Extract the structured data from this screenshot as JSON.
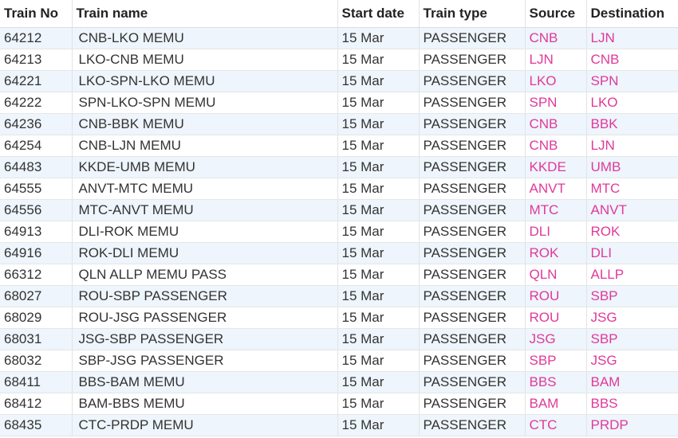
{
  "table": {
    "header": [
      "Train No",
      "Train name",
      "Start date",
      "Train type",
      "Source",
      "Destination"
    ],
    "rows": [
      [
        "64212",
        "CNB-LKO MEMU",
        "15 Mar",
        "PASSENGER",
        "CNB",
        "LJN"
      ],
      [
        "64213",
        "LKO-CNB MEMU",
        "15 Mar",
        "PASSENGER",
        "LJN",
        "CNB"
      ],
      [
        "64221",
        "LKO-SPN-LKO MEMU",
        "15 Mar",
        "PASSENGER",
        "LKO",
        "SPN"
      ],
      [
        "64222",
        "SPN-LKO-SPN MEMU",
        "15 Mar",
        "PASSENGER",
        "SPN",
        "LKO"
      ],
      [
        "64236",
        "CNB-BBK MEMU",
        "15 Mar",
        "PASSENGER",
        "CNB",
        "BBK"
      ],
      [
        "64254",
        "CNB-LJN MEMU",
        "15 Mar",
        "PASSENGER",
        "CNB",
        "LJN"
      ],
      [
        "64483",
        "KKDE-UMB MEMU",
        "15 Mar",
        "PASSENGER",
        "KKDE",
        "UMB"
      ],
      [
        "64555",
        "ANVT-MTC MEMU",
        "15 Mar",
        "PASSENGER",
        "ANVT",
        "MTC"
      ],
      [
        "64556",
        "MTC-ANVT MEMU",
        "15 Mar",
        "PASSENGER",
        "MTC",
        "ANVT"
      ],
      [
        "64913",
        "DLI-ROK MEMU",
        "15 Mar",
        "PASSENGER",
        "DLI",
        "ROK"
      ],
      [
        "64916",
        "ROK-DLI MEMU",
        "15 Mar",
        "PASSENGER",
        "ROK",
        "DLI"
      ],
      [
        "66312",
        "QLN ALLP MEMU PASS",
        "15 Mar",
        "PASSENGER",
        "QLN",
        "ALLP"
      ],
      [
        "68027",
        "ROU-SBP PASSENGER",
        "15 Mar",
        "PASSENGER",
        "ROU",
        "SBP"
      ],
      [
        "68029",
        "ROU-JSG PASSENGER",
        "15 Mar",
        "PASSENGER",
        "ROU",
        "JSG"
      ],
      [
        "68031",
        "JSG-SBP PASSENGER",
        "15 Mar",
        "PASSENGER",
        "JSG",
        "SBP"
      ],
      [
        "68032",
        "SBP-JSG PASSENGER",
        "15 Mar",
        "PASSENGER",
        "SBP",
        "JSG"
      ],
      [
        "68411",
        "BBS-BAM MEMU",
        "15 Mar",
        "PASSENGER",
        "BBS",
        "BAM"
      ],
      [
        "68412",
        "BAM-BBS MEMU",
        "15 Mar",
        "PASSENGER",
        "BAM",
        "BBS"
      ],
      [
        "68435",
        "CTC-PRDP MEMU",
        "15 Mar",
        "PASSENGER",
        "CTC",
        "PRDP"
      ]
    ]
  }
}
